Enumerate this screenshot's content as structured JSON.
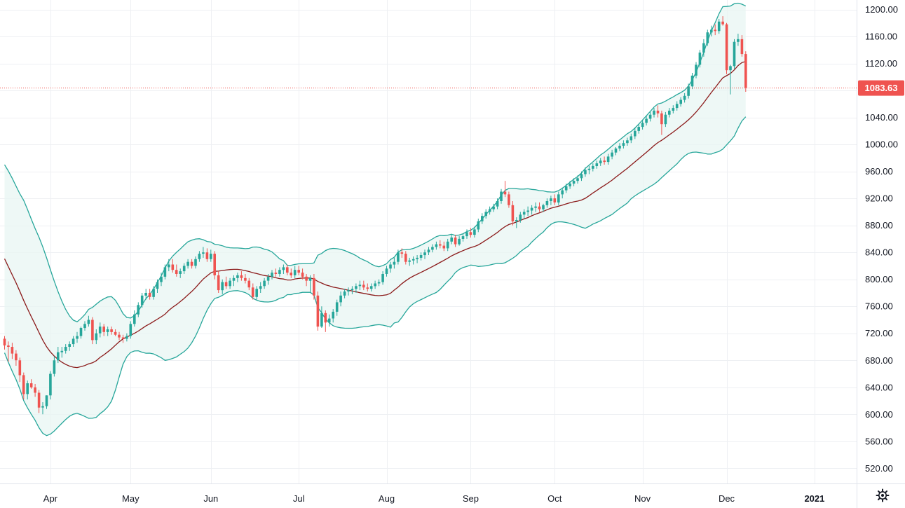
{
  "chart_data": {
    "type": "candlestick",
    "title": "",
    "indicator": "Bollinger Bands (20, 2)",
    "last_price": 1083.63,
    "last_price_label": "1083.63",
    "ylim": [
      490,
      1215
    ],
    "yticks": [
      "1200.00",
      "1160.00",
      "1120.00",
      "1080.00",
      "1040.00",
      "1000.00",
      "960.00",
      "920.00",
      "880.00",
      "840.00",
      "800.00",
      "760.00",
      "720.00",
      "680.00",
      "640.00",
      "600.00",
      "560.00",
      "520.00"
    ],
    "x_labels": [
      {
        "label": "Apr",
        "index": 12
      },
      {
        "label": "May",
        "index": 33
      },
      {
        "label": "Jun",
        "index": 54
      },
      {
        "label": "Jul",
        "index": 77
      },
      {
        "label": "Aug",
        "index": 100
      },
      {
        "label": "Sep",
        "index": 122
      },
      {
        "label": "Oct",
        "index": 144
      },
      {
        "label": "Nov",
        "index": 167
      },
      {
        "label": "Dec",
        "index": 189
      },
      {
        "label": "2021",
        "index": 212,
        "bold": true
      }
    ],
    "colors": {
      "up": "#26a69a",
      "down": "#ef5350",
      "band": "#26a69a",
      "band_fill": "#e8f5f3",
      "basis": "#8b1a1a",
      "grid": "#eef0f3",
      "last_price_bg": "#ef5350"
    },
    "settings_icon": "gear-icon",
    "candles": [
      [
        712,
        716,
        696,
        702
      ],
      [
        702,
        708,
        678,
        700
      ],
      [
        700,
        706,
        682,
        690
      ],
      [
        690,
        695,
        672,
        680
      ],
      [
        680,
        684,
        648,
        658
      ],
      [
        658,
        662,
        622,
        630
      ],
      [
        630,
        650,
        622,
        646
      ],
      [
        646,
        652,
        638,
        640
      ],
      [
        640,
        645,
        626,
        632
      ],
      [
        632,
        636,
        602,
        610
      ],
      [
        610,
        618,
        600,
        612
      ],
      [
        612,
        628,
        608,
        628
      ],
      [
        628,
        664,
        622,
        660
      ],
      [
        660,
        686,
        656,
        680
      ],
      [
        680,
        700,
        676,
        692
      ],
      [
        692,
        700,
        684,
        694
      ],
      [
        694,
        704,
        690,
        700
      ],
      [
        700,
        708,
        694,
        704
      ],
      [
        704,
        716,
        700,
        712
      ],
      [
        712,
        722,
        706,
        716
      ],
      [
        716,
        730,
        712,
        728
      ],
      [
        728,
        738,
        724,
        734
      ],
      [
        734,
        746,
        730,
        740
      ],
      [
        740,
        744,
        704,
        710
      ],
      [
        710,
        726,
        704,
        720
      ],
      [
        720,
        736,
        714,
        730
      ],
      [
        730,
        734,
        716,
        722
      ],
      [
        722,
        730,
        716,
        726
      ],
      [
        726,
        730,
        718,
        722
      ],
      [
        722,
        726,
        716,
        718
      ],
      [
        718,
        722,
        710,
        714
      ],
      [
        714,
        718,
        706,
        712
      ],
      [
        712,
        720,
        708,
        716
      ],
      [
        716,
        738,
        712,
        734
      ],
      [
        734,
        754,
        730,
        748
      ],
      [
        748,
        766,
        744,
        762
      ],
      [
        762,
        780,
        758,
        776
      ],
      [
        776,
        786,
        770,
        780
      ],
      [
        780,
        786,
        770,
        774
      ],
      [
        774,
        790,
        770,
        786
      ],
      [
        786,
        800,
        780,
        796
      ],
      [
        796,
        810,
        790,
        804
      ],
      [
        804,
        822,
        800,
        818
      ],
      [
        818,
        830,
        812,
        822
      ],
      [
        822,
        830,
        810,
        814
      ],
      [
        814,
        822,
        804,
        808
      ],
      [
        808,
        816,
        802,
        812
      ],
      [
        812,
        824,
        808,
        820
      ],
      [
        820,
        830,
        816,
        826
      ],
      [
        826,
        830,
        816,
        820
      ],
      [
        820,
        834,
        816,
        830
      ],
      [
        830,
        842,
        826,
        838
      ],
      [
        838,
        848,
        832,
        840
      ],
      [
        840,
        846,
        826,
        830
      ],
      [
        830,
        844,
        826,
        838
      ],
      [
        838,
        842,
        800,
        806
      ],
      [
        806,
        812,
        780,
        784
      ],
      [
        784,
        800,
        778,
        796
      ],
      [
        796,
        804,
        786,
        790
      ],
      [
        790,
        802,
        786,
        798
      ],
      [
        798,
        806,
        790,
        802
      ],
      [
        802,
        810,
        796,
        806
      ],
      [
        806,
        812,
        798,
        802
      ],
      [
        802,
        808,
        794,
        798
      ],
      [
        798,
        802,
        784,
        788
      ],
      [
        788,
        794,
        770,
        774
      ],
      [
        774,
        790,
        770,
        786
      ],
      [
        786,
        796,
        780,
        790
      ],
      [
        790,
        802,
        786,
        798
      ],
      [
        798,
        808,
        792,
        804
      ],
      [
        804,
        814,
        800,
        810
      ],
      [
        810,
        816,
        804,
        808
      ],
      [
        808,
        818,
        804,
        814
      ],
      [
        814,
        822,
        808,
        818
      ],
      [
        818,
        822,
        806,
        810
      ],
      [
        810,
        816,
        802,
        806
      ],
      [
        806,
        820,
        802,
        814
      ],
      [
        814,
        820,
        806,
        810
      ],
      [
        810,
        816,
        800,
        804
      ],
      [
        804,
        808,
        790,
        798
      ],
      [
        798,
        806,
        780,
        802
      ],
      [
        802,
        808,
        770,
        776
      ],
      [
        776,
        782,
        724,
        730
      ],
      [
        730,
        760,
        728,
        750
      ],
      [
        750,
        754,
        722,
        736
      ],
      [
        736,
        748,
        730,
        742
      ],
      [
        742,
        756,
        736,
        752
      ],
      [
        752,
        770,
        746,
        766
      ],
      [
        766,
        782,
        760,
        776
      ],
      [
        776,
        786,
        772,
        782
      ],
      [
        782,
        788,
        776,
        784
      ],
      [
        784,
        790,
        778,
        786
      ],
      [
        786,
        794,
        780,
        790
      ],
      [
        790,
        798,
        784,
        792
      ],
      [
        792,
        798,
        784,
        788
      ],
      [
        788,
        794,
        782,
        786
      ],
      [
        786,
        794,
        782,
        790
      ],
      [
        790,
        798,
        786,
        794
      ],
      [
        794,
        800,
        790,
        796
      ],
      [
        796,
        812,
        792,
        808
      ],
      [
        808,
        820,
        804,
        816
      ],
      [
        816,
        826,
        810,
        822
      ],
      [
        822,
        832,
        816,
        826
      ],
      [
        826,
        844,
        822,
        840
      ],
      [
        840,
        846,
        832,
        838
      ],
      [
        838,
        842,
        822,
        826
      ],
      [
        826,
        832,
        820,
        828
      ],
      [
        828,
        834,
        822,
        830
      ],
      [
        830,
        836,
        824,
        832
      ],
      [
        832,
        840,
        828,
        836
      ],
      [
        836,
        844,
        830,
        840
      ],
      [
        840,
        848,
        836,
        844
      ],
      [
        844,
        852,
        840,
        848
      ],
      [
        848,
        856,
        844,
        852
      ],
      [
        852,
        858,
        846,
        850
      ],
      [
        850,
        856,
        842,
        846
      ],
      [
        846,
        860,
        842,
        856
      ],
      [
        856,
        866,
        852,
        862
      ],
      [
        862,
        866,
        848,
        852
      ],
      [
        852,
        864,
        850,
        860
      ],
      [
        860,
        868,
        856,
        864
      ],
      [
        864,
        874,
        860,
        870
      ],
      [
        870,
        876,
        862,
        866
      ],
      [
        866,
        878,
        862,
        874
      ],
      [
        874,
        890,
        870,
        886
      ],
      [
        886,
        898,
        882,
        894
      ],
      [
        894,
        904,
        890,
        900
      ],
      [
        900,
        908,
        896,
        904
      ],
      [
        904,
        912,
        900,
        908
      ],
      [
        908,
        920,
        904,
        916
      ],
      [
        916,
        934,
        912,
        930
      ],
      [
        930,
        946,
        922,
        926
      ],
      [
        926,
        930,
        906,
        910
      ],
      [
        910,
        916,
        880,
        886
      ],
      [
        886,
        892,
        876,
        888
      ],
      [
        888,
        900,
        884,
        896
      ],
      [
        896,
        904,
        890,
        900
      ],
      [
        900,
        908,
        894,
        902
      ],
      [
        902,
        910,
        896,
        906
      ],
      [
        906,
        914,
        900,
        908
      ],
      [
        908,
        914,
        900,
        904
      ],
      [
        904,
        912,
        900,
        910
      ],
      [
        910,
        920,
        906,
        916
      ],
      [
        916,
        924,
        910,
        920
      ],
      [
        920,
        926,
        910,
        914
      ],
      [
        914,
        930,
        910,
        926
      ],
      [
        926,
        936,
        920,
        932
      ],
      [
        932,
        942,
        928,
        938
      ],
      [
        938,
        946,
        934,
        942
      ],
      [
        942,
        950,
        938,
        946
      ],
      [
        946,
        954,
        942,
        950
      ],
      [
        950,
        960,
        946,
        956
      ],
      [
        956,
        966,
        952,
        962
      ],
      [
        962,
        968,
        956,
        964
      ],
      [
        964,
        972,
        960,
        968
      ],
      [
        968,
        976,
        964,
        972
      ],
      [
        972,
        980,
        968,
        976
      ],
      [
        976,
        982,
        970,
        974
      ],
      [
        974,
        986,
        970,
        982
      ],
      [
        982,
        992,
        978,
        988
      ],
      [
        988,
        996,
        984,
        994
      ],
      [
        994,
        1002,
        990,
        998
      ],
      [
        998,
        1006,
        994,
        1002
      ],
      [
        1002,
        1010,
        998,
        1006
      ],
      [
        1006,
        1016,
        1002,
        1012
      ],
      [
        1012,
        1024,
        1008,
        1020
      ],
      [
        1020,
        1030,
        1016,
        1026
      ],
      [
        1026,
        1036,
        1022,
        1032
      ],
      [
        1032,
        1042,
        1028,
        1038
      ],
      [
        1038,
        1048,
        1034,
        1044
      ],
      [
        1044,
        1054,
        1040,
        1050
      ],
      [
        1050,
        1058,
        1040,
        1046
      ],
      [
        1046,
        1050,
        1014,
        1030
      ],
      [
        1030,
        1048,
        1026,
        1044
      ],
      [
        1044,
        1054,
        1040,
        1050
      ],
      [
        1050,
        1058,
        1046,
        1054
      ],
      [
        1054,
        1064,
        1050,
        1060
      ],
      [
        1060,
        1070,
        1056,
        1066
      ],
      [
        1066,
        1076,
        1062,
        1072
      ],
      [
        1072,
        1090,
        1068,
        1086
      ],
      [
        1086,
        1106,
        1082,
        1102
      ],
      [
        1102,
        1122,
        1098,
        1118
      ],
      [
        1118,
        1140,
        1114,
        1136
      ],
      [
        1136,
        1156,
        1130,
        1150
      ],
      [
        1150,
        1170,
        1146,
        1166
      ],
      [
        1166,
        1176,
        1160,
        1170
      ],
      [
        1170,
        1178,
        1162,
        1168
      ],
      [
        1168,
        1186,
        1164,
        1182
      ],
      [
        1182,
        1190,
        1176,
        1178
      ],
      [
        1178,
        1180,
        1104,
        1110
      ],
      [
        1110,
        1118,
        1074,
        1116
      ],
      [
        1116,
        1156,
        1112,
        1152
      ],
      [
        1152,
        1164,
        1146,
        1156
      ],
      [
        1156,
        1162,
        1130,
        1134
      ],
      [
        1134,
        1138,
        1078,
        1084
      ]
    ]
  }
}
